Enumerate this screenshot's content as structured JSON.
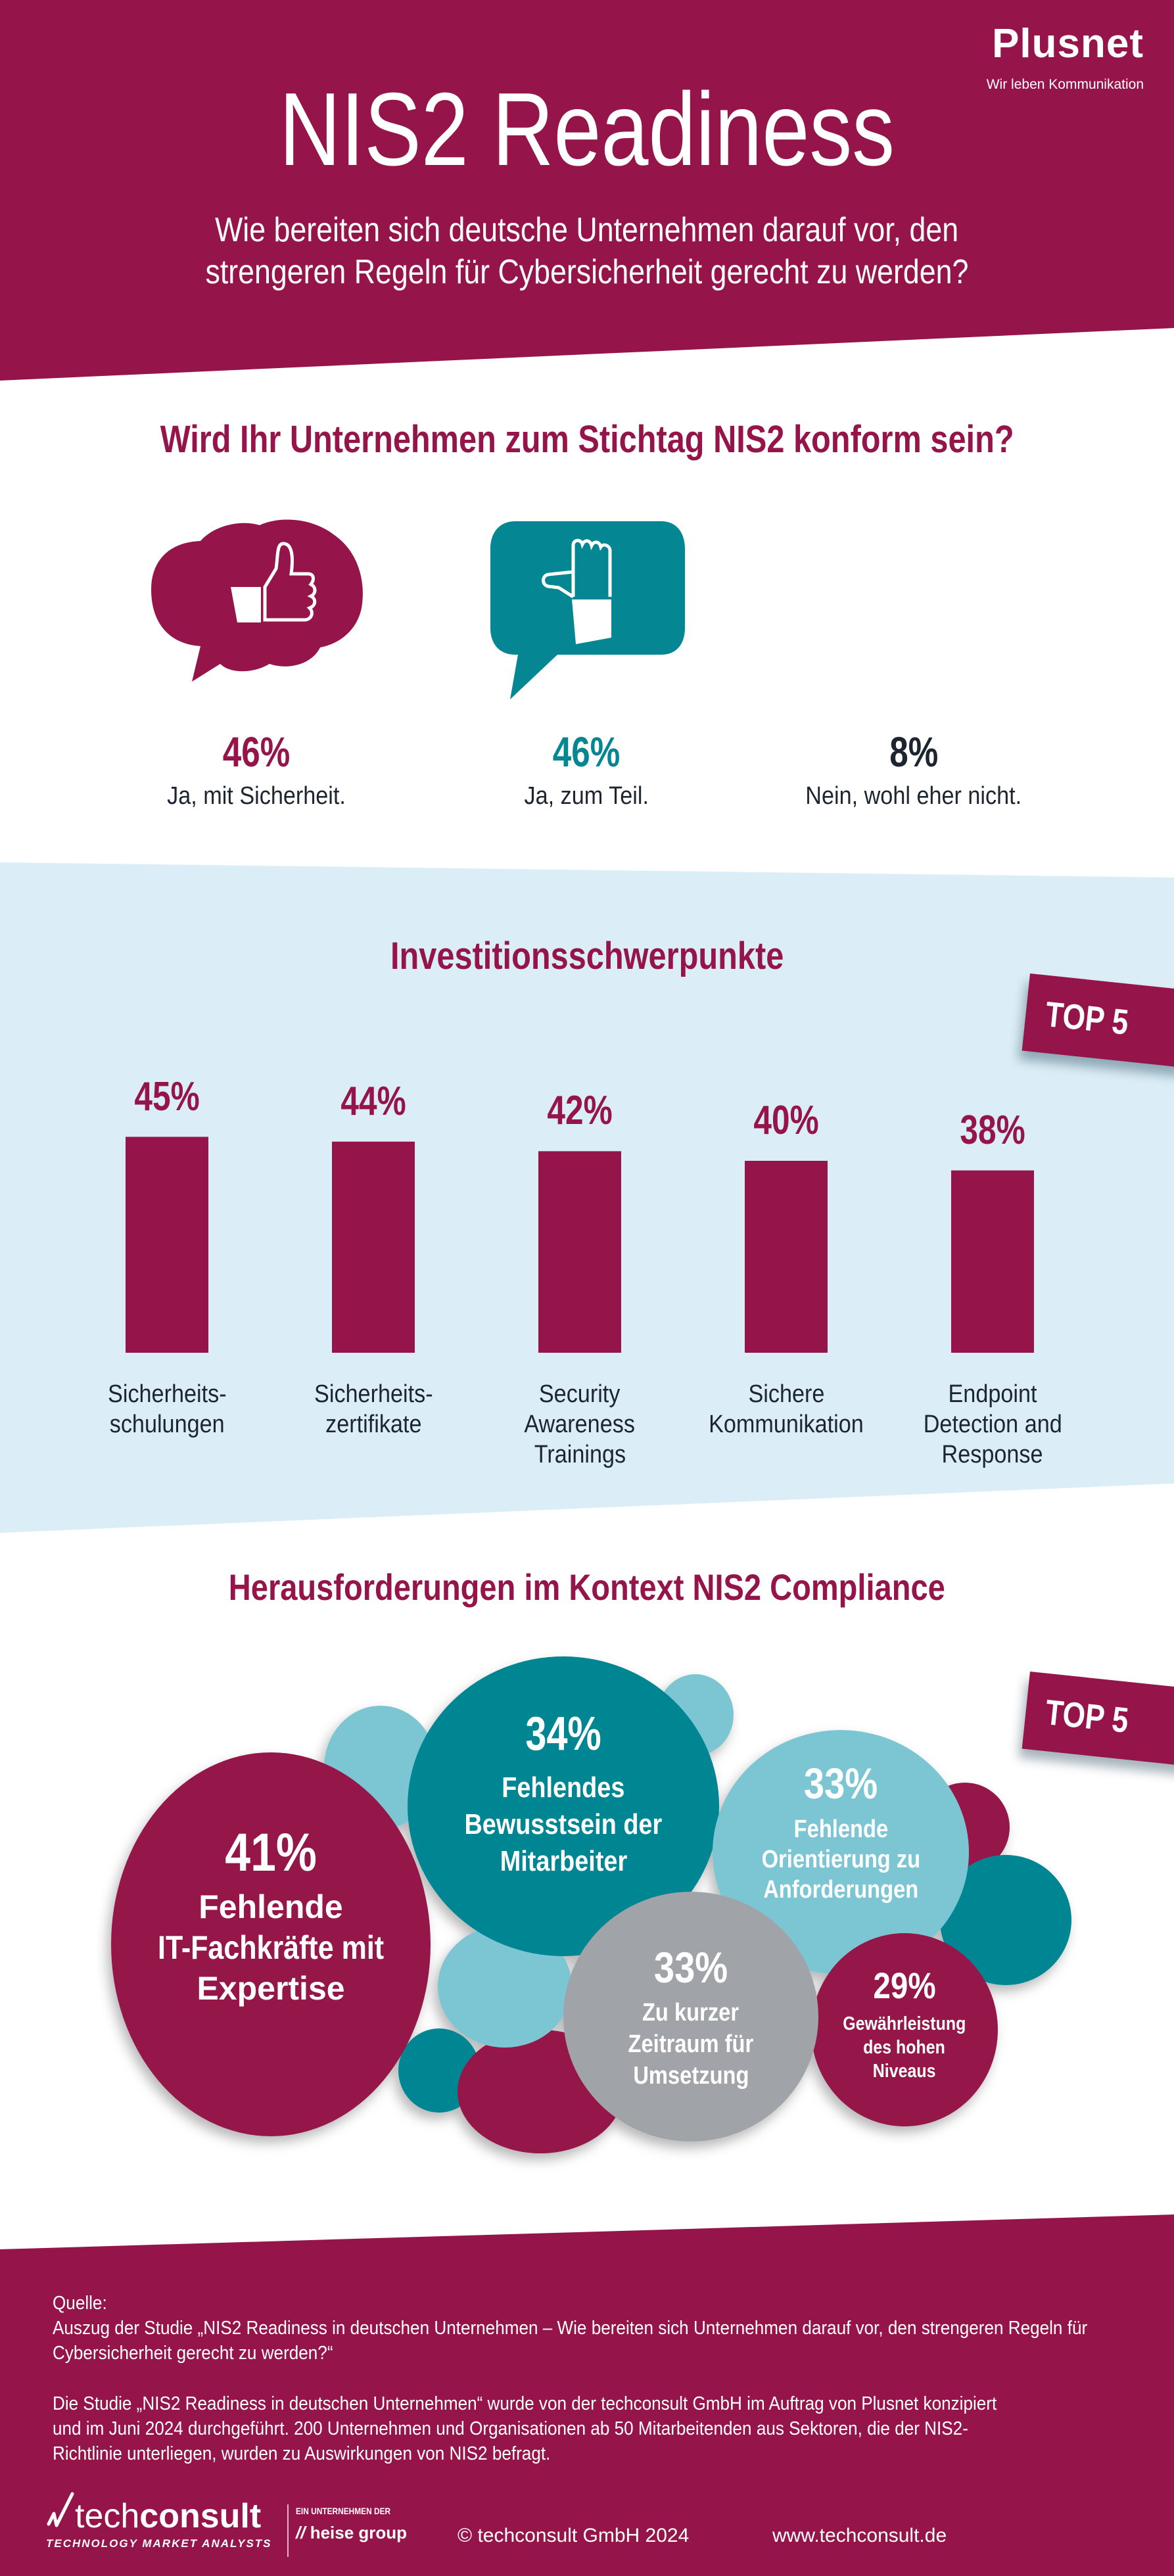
{
  "colors": {
    "crimson": "#95154a",
    "teal": "#058693",
    "light_blue": "#7cc6d4",
    "grey": "#a0a4a8",
    "section_bg": "#dbeef7",
    "dark_text": "#1d2530"
  },
  "header": {
    "logo": "Plusnet",
    "tagline": "Wir leben Kommunikation",
    "title": "NIS2 Readiness",
    "subtitle_line1": "Wie bereiten sich deutsche Unternehmen darauf vor, den",
    "subtitle_line2": "strengeren Regeln für Cybersicherheit gerecht zu werden?"
  },
  "conformity": {
    "title": "Wird Ihr Unternehmen zum Stichtag NIS2 konform sein?",
    "answers": [
      {
        "value": "46%",
        "label": "Ja, mit Sicherheit.",
        "icon": "thumbs-up-icon"
      },
      {
        "value": "46%",
        "label": "Ja, zum Teil.",
        "icon": "thumbs-sideways-icon"
      },
      {
        "value": "8%",
        "label": "Nein, wohl eher nicht."
      }
    ]
  },
  "investments": {
    "title": "Investitionsschwerpunkte",
    "badge": "TOP 5"
  },
  "chart_data": {
    "type": "bar",
    "title": "Investitionsschwerpunkte",
    "categories": [
      "Sicherheits-schulungen",
      "Sicherheits-zertifikate",
      "Security Awareness Trainings",
      "Sichere Kommunikation",
      "Endpoint Detection and Response"
    ],
    "category_lines": [
      [
        "Sicherheits-",
        "schulungen"
      ],
      [
        "Sicherheits-",
        "zertifikate"
      ],
      [
        "Security",
        "Awareness",
        "Trainings"
      ],
      [
        "Sichere",
        "Kommunikation"
      ],
      [
        "Endpoint",
        "Detection and",
        "Response"
      ]
    ],
    "values": [
      45,
      44,
      42,
      40,
      38
    ],
    "value_labels": [
      "45%",
      "44%",
      "42%",
      "40%",
      "38%"
    ],
    "unit": "%",
    "xlabel": "",
    "ylabel": "",
    "grid": false
  },
  "challenges": {
    "title": "Herausforderungen im Kontext NIS2 Compliance",
    "badge": "TOP 5",
    "items": [
      {
        "value": "41%",
        "lines": [
          "Fehlende",
          "IT-Fachkräfte mit",
          "Expertise"
        ]
      },
      {
        "value": "34%",
        "lines": [
          "Fehlendes",
          "Bewusstsein der",
          "Mitarbeiter"
        ]
      },
      {
        "value": "33%",
        "lines": [
          "Fehlende",
          "Orientierung zu",
          "Anforderungen"
        ]
      },
      {
        "value": "33%",
        "lines": [
          "Zu kurzer",
          "Zeitraum für",
          "Umsetzung"
        ]
      },
      {
        "value": "29%",
        "lines": [
          "Gewährleistung",
          "des hohen",
          "Niveaus"
        ]
      }
    ]
  },
  "footer": {
    "source_label": "Quelle:",
    "source_text": "Auszug der Studie „NIS2 Readiness in deutschen Unternehmen – Wie bereiten sich Unternehmen darauf vor, den strengeren Regeln für Cybersicherheit gerecht zu werden?“",
    "study_text": "Die Studie „NIS2 Readiness in deutschen Unternehmen“ wurde von der techconsult GmbH im Auftrag von Plusnet konzipiert und im Juni 2024 durchgeführt. 200 Unternehmen und Organisationen ab 50 Mitarbeitenden aus Sektoren, die der NIS2-Richtlinie unterliegen, wurden zu Auswirkungen von NIS2 befragt.",
    "brand_light": "tech",
    "brand_bold": "consult",
    "brand_sub": "TECHNOLOGY MARKET ANALYSTS",
    "parent_label": "EIN UNTERNEHMEN DER",
    "parent_name": "heise group",
    "copyright": "© techconsult GmbH 2024",
    "website": "www.techconsult.de"
  }
}
